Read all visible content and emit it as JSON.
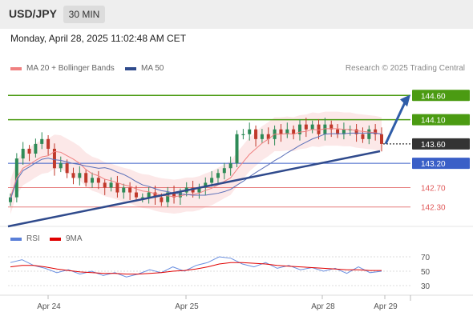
{
  "header": {
    "pair": "USD/JPY",
    "timeframe": "30 MIN"
  },
  "timestamp": "Monday, April 28, 2025 11:02:48 AM CET",
  "legend": {
    "ma20": "MA 20 + Bollinger Bands",
    "ma50": "MA 50",
    "credit": "Research © 2025 Trading Central"
  },
  "rsi_legend": {
    "rsi": "RSI",
    "ma9": "9MA"
  },
  "colors": {
    "resistance": "#4b9b12",
    "support": "#3a5fc7",
    "trendline": "#2f4a8c",
    "pivot": "#e05a5a",
    "ma20": "#f08080",
    "ma50": "#5a6fb8",
    "candle_up": "#2e8b57",
    "candle_down": "#c0392b",
    "current": "#333333",
    "arrow": "#2f5da8"
  },
  "chart_data": [
    {
      "type": "candlestick",
      "title": "USD/JPY 30 MIN",
      "y_range": [
        141.9,
        145.0
      ],
      "x_ticks": [
        "Apr 24",
        "Apr 25",
        "Apr 28",
        "Apr 29"
      ],
      "price_levels": [
        {
          "value": 144.6,
          "label": "144.60",
          "kind": "resistance"
        },
        {
          "value": 144.1,
          "label": "144.10",
          "kind": "resistance"
        },
        {
          "value": 143.6,
          "label": "143.60",
          "kind": "current"
        },
        {
          "value": 143.2,
          "label": "143.20",
          "kind": "support"
        },
        {
          "value": 142.7,
          "label": "142.70",
          "kind": "pivot"
        },
        {
          "value": 142.3,
          "label": "142.30",
          "kind": "pivot"
        }
      ],
      "close_path": [
        142.5,
        143.3,
        143.5,
        143.4,
        143.6,
        143.7,
        143.5,
        143.1,
        143.2,
        143.0,
        142.9,
        143.0,
        142.8,
        142.9,
        142.8,
        142.7,
        142.8,
        142.6,
        142.7,
        142.6,
        142.5,
        142.5,
        142.6,
        142.5,
        142.4,
        142.6,
        142.5,
        142.6,
        142.7,
        142.6,
        142.7,
        142.8,
        142.9,
        143.0,
        143.1,
        143.2,
        143.8,
        143.8,
        143.9,
        143.7,
        143.8,
        143.7,
        143.9,
        143.8,
        143.9,
        143.8,
        144.0,
        143.9,
        144.0,
        143.8,
        144.0,
        143.9,
        143.8,
        143.9,
        143.9,
        143.8,
        143.7,
        143.9,
        143.8,
        143.6
      ],
      "forecast_target": 144.6
    },
    {
      "type": "line",
      "title": "RSI",
      "y_range": [
        20,
        80
      ],
      "y_ticks": [
        "70",
        "50",
        "30"
      ],
      "series": [
        {
          "name": "RSI",
          "values": [
            62,
            66,
            58,
            54,
            48,
            52,
            46,
            50,
            44,
            48,
            42,
            46,
            52,
            48,
            56,
            50,
            58,
            62,
            70,
            68,
            60,
            56,
            62,
            54,
            58,
            52,
            55,
            50,
            54,
            47,
            56,
            48,
            50
          ]
        },
        {
          "name": "9MA",
          "values": [
            56,
            58,
            58,
            56,
            53,
            51,
            49,
            48,
            47,
            47,
            46,
            46,
            47,
            48,
            50,
            51,
            53,
            56,
            60,
            62,
            62,
            61,
            60,
            58,
            57,
            56,
            55,
            54,
            53,
            52,
            52,
            51,
            51
          ]
        }
      ]
    }
  ]
}
